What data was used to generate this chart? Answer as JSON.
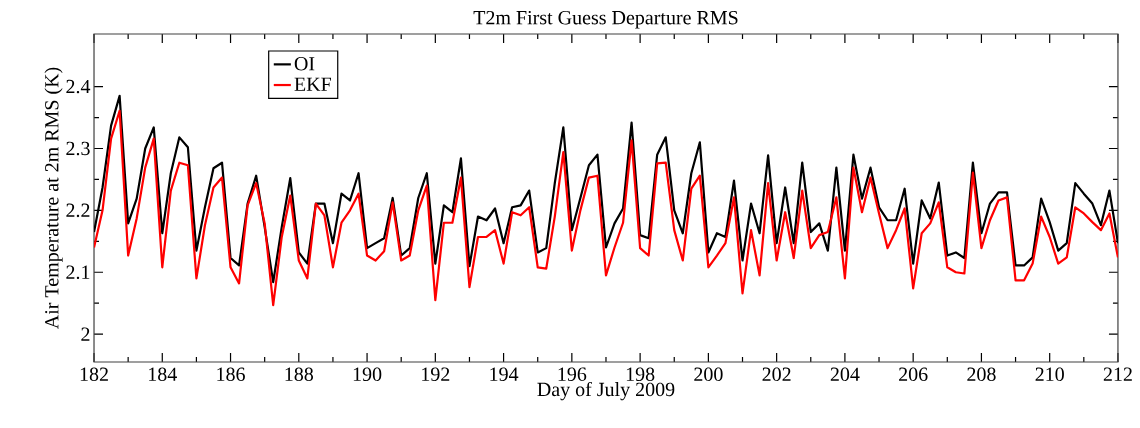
{
  "chart_data": {
    "type": "line",
    "title": "T2m First Guess Departure RMS",
    "xlabel": "Day of  July 2009",
    "ylabel": "Air Temperature at 2m RMS (K)",
    "x": [
      182,
      182.25,
      182.5,
      182.75,
      183,
      183.25,
      183.5,
      183.75,
      184,
      184.25,
      184.5,
      184.75,
      185,
      185.25,
      185.5,
      185.75,
      186,
      186.25,
      186.5,
      186.75,
      187,
      187.25,
      187.5,
      187.75,
      188,
      188.25,
      188.5,
      188.75,
      189,
      189.25,
      189.5,
      189.75,
      190,
      190.25,
      190.5,
      190.75,
      191,
      191.25,
      191.5,
      191.75,
      192,
      192.25,
      192.5,
      192.75,
      193,
      193.25,
      193.5,
      193.75,
      194,
      194.25,
      194.5,
      194.75,
      195,
      195.25,
      195.5,
      195.75,
      196,
      196.25,
      196.5,
      196.75,
      197,
      197.25,
      197.5,
      197.75,
      198,
      198.25,
      198.5,
      198.75,
      199,
      199.25,
      199.5,
      199.75,
      200,
      200.25,
      200.5,
      200.75,
      201,
      201.25,
      201.5,
      201.75,
      202,
      202.25,
      202.5,
      202.75,
      203,
      203.25,
      203.5,
      203.75,
      204,
      204.25,
      204.5,
      204.75,
      205,
      205.25,
      205.5,
      205.75,
      206,
      206.25,
      206.5,
      206.75,
      207,
      207.25,
      207.5,
      207.75,
      208,
      208.25,
      208.5,
      208.75,
      209,
      209.25,
      209.5,
      209.75,
      210,
      210.25,
      210.5,
      210.75,
      211,
      211.25,
      211.5,
      211.75,
      212
    ],
    "series": [
      {
        "name": "OI",
        "color": "#000000",
        "values": [
          2.165,
          2.237,
          2.337,
          2.385,
          2.179,
          2.219,
          2.3,
          2.334,
          2.163,
          2.26,
          2.318,
          2.302,
          2.135,
          2.205,
          2.268,
          2.277,
          2.123,
          2.111,
          2.211,
          2.256,
          2.173,
          2.084,
          2.173,
          2.252,
          2.132,
          2.114,
          2.211,
          2.211,
          2.147,
          2.227,
          2.216,
          2.26,
          2.139,
          2.147,
          2.155,
          2.22,
          2.127,
          2.139,
          2.22,
          2.26,
          2.114,
          2.208,
          2.197,
          2.284,
          2.11,
          2.19,
          2.184,
          2.203,
          2.147,
          2.205,
          2.208,
          2.232,
          2.132,
          2.139,
          2.244,
          2.334,
          2.168,
          2.22,
          2.273,
          2.29,
          2.14,
          2.179,
          2.203,
          2.342,
          2.16,
          2.155,
          2.29,
          2.318,
          2.2,
          2.163,
          2.26,
          2.31,
          2.132,
          2.163,
          2.157,
          2.248,
          2.119,
          2.211,
          2.163,
          2.289,
          2.147,
          2.237,
          2.147,
          2.277,
          2.165,
          2.179,
          2.135,
          2.269,
          2.135,
          2.29,
          2.219,
          2.269,
          2.205,
          2.184,
          2.184,
          2.235,
          2.114,
          2.216,
          2.187,
          2.245,
          2.127,
          2.132,
          2.123,
          2.277,
          2.163,
          2.211,
          2.229,
          2.229,
          2.111,
          2.111,
          2.124,
          2.219,
          2.181,
          2.135,
          2.147,
          2.244,
          2.227,
          2.211,
          2.176,
          2.232,
          2.147
        ]
      },
      {
        "name": "EKF",
        "color": "#ff0000",
        "values": [
          2.14,
          2.2,
          2.316,
          2.361,
          2.127,
          2.187,
          2.269,
          2.316,
          2.108,
          2.232,
          2.277,
          2.273,
          2.09,
          2.176,
          2.237,
          2.253,
          2.108,
          2.082,
          2.208,
          2.244,
          2.179,
          2.047,
          2.157,
          2.224,
          2.119,
          2.09,
          2.211,
          2.192,
          2.108,
          2.18,
          2.2,
          2.227,
          2.127,
          2.119,
          2.134,
          2.213,
          2.119,
          2.127,
          2.2,
          2.24,
          2.055,
          2.18,
          2.18,
          2.253,
          2.076,
          2.157,
          2.157,
          2.168,
          2.114,
          2.197,
          2.192,
          2.205,
          2.108,
          2.106,
          2.19,
          2.294,
          2.135,
          2.2,
          2.253,
          2.256,
          2.095,
          2.14,
          2.18,
          2.313,
          2.139,
          2.127,
          2.276,
          2.277,
          2.168,
          2.119,
          2.235,
          2.256,
          2.108,
          2.127,
          2.147,
          2.221,
          2.066,
          2.168,
          2.095,
          2.244,
          2.119,
          2.197,
          2.123,
          2.232,
          2.139,
          2.16,
          2.165,
          2.221,
          2.09,
          2.269,
          2.197,
          2.253,
          2.195,
          2.139,
          2.168,
          2.203,
          2.074,
          2.163,
          2.179,
          2.213,
          2.108,
          2.1,
          2.098,
          2.261,
          2.139,
          2.184,
          2.216,
          2.221,
          2.087,
          2.087,
          2.114,
          2.19,
          2.157,
          2.114,
          2.124,
          2.205,
          2.195,
          2.181,
          2.168,
          2.195,
          2.124
        ]
      }
    ],
    "xlim": [
      182,
      212
    ],
    "xticks": [
      182,
      184,
      186,
      188,
      190,
      192,
      194,
      196,
      198,
      200,
      202,
      204,
      206,
      208,
      210,
      212
    ],
    "ylim": [
      1.955,
      2.485
    ],
    "yticks": [
      2,
      2.1,
      2.2,
      2.3,
      2.4
    ],
    "legend": "top left",
    "marker": "none",
    "line_style": "solid"
  }
}
